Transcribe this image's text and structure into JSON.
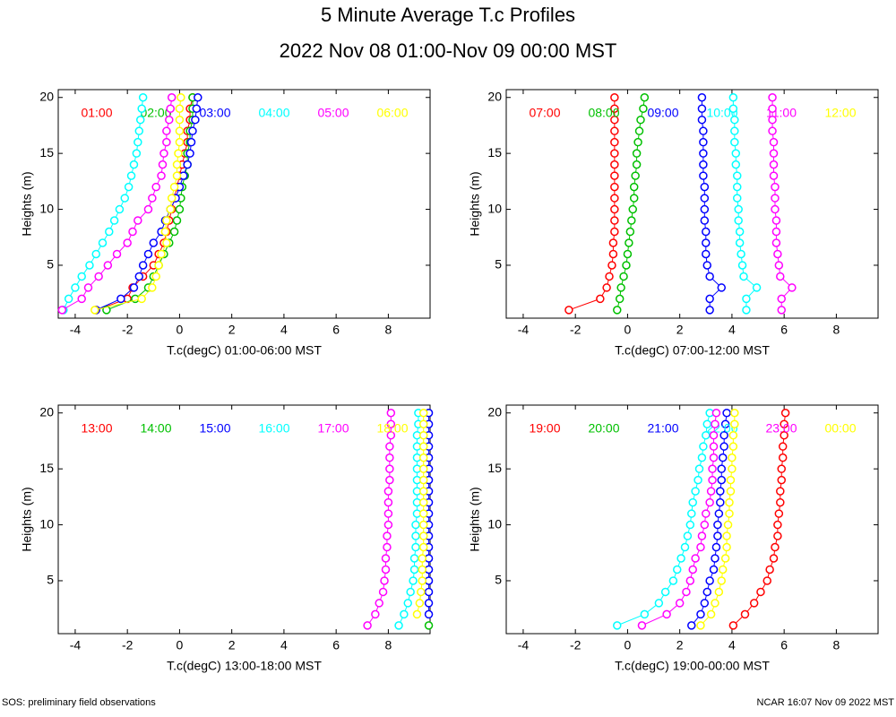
{
  "header": {
    "title": "5 Minute Average T.c Profiles",
    "subtitle": "2022 Nov 08 01:00-Nov 09 00:00 MST"
  },
  "footer": {
    "left": "SOS: preliminary field observations",
    "right": "NCAR 16:07 Nov 09 2022 MST"
  },
  "chart_data": [
    {
      "type": "line",
      "x_label": "T.c(degC) 01:00-06:00 MST",
      "y_label": "Heights (m)",
      "xlim": [
        -4.65,
        9.6
      ],
      "ylim": [
        0.27,
        20.7
      ],
      "xticks": [
        -4,
        -2,
        0,
        2,
        4,
        6,
        8
      ],
      "yticks": [
        5,
        10,
        15,
        20
      ],
      "y": [
        1,
        2,
        3,
        4,
        5,
        6,
        7,
        8,
        9,
        10,
        11,
        12,
        13,
        14,
        15,
        16,
        17,
        18,
        19,
        20
      ],
      "series": [
        {
          "name": "01:00",
          "color": "#ff0000",
          "x": [
            -3.2,
            -2.0,
            -1.8,
            -1.4,
            -1.0,
            -0.8,
            -0.6,
            -0.5,
            -0.4,
            -0.3,
            -0.2,
            -0.1,
            0.0,
            0.1,
            0.2,
            0.3,
            0.3,
            0.4,
            0.4,
            0.5
          ]
        },
        {
          "name": "02:00",
          "color": "#00c000",
          "x": [
            -2.8,
            -1.7,
            -1.2,
            -1.0,
            -0.8,
            -0.6,
            -0.4,
            -0.2,
            -0.1,
            0.0,
            0.05,
            0.1,
            0.2,
            0.3,
            0.3,
            0.4,
            0.4,
            0.5,
            0.5,
            0.5
          ]
        },
        {
          "name": "03:00",
          "color": "#0000ff",
          "x": [
            -3.2,
            -2.25,
            -1.75,
            -1.55,
            -1.4,
            -1.2,
            -1.0,
            -0.7,
            -0.55,
            -0.35,
            -0.15,
            0.0,
            0.15,
            0.3,
            0.4,
            0.45,
            0.5,
            0.6,
            0.65,
            0.7
          ]
        },
        {
          "name": "04:00",
          "color": "#00ffff",
          "x": [
            -4.45,
            -4.25,
            -4.0,
            -3.75,
            -3.45,
            -3.2,
            -2.95,
            -2.7,
            -2.5,
            -2.3,
            -2.1,
            -1.95,
            -1.85,
            -1.75,
            -1.65,
            -1.6,
            -1.55,
            -1.5,
            -1.45,
            -1.4
          ]
        },
        {
          "name": "05:00",
          "color": "#ff00ff",
          "x": [
            -4.5,
            -3.75,
            -3.5,
            -3.1,
            -2.75,
            -2.4,
            -2.0,
            -1.8,
            -1.6,
            -1.2,
            -1.05,
            -0.9,
            -0.7,
            -0.65,
            -0.6,
            -0.5,
            -0.5,
            -0.4,
            -0.35,
            -0.3
          ]
        },
        {
          "name": "06:00",
          "color": "#ffff00",
          "x": [
            -3.25,
            -1.45,
            -1.05,
            -0.9,
            -0.8,
            -0.7,
            -0.5,
            -0.55,
            -0.5,
            -0.35,
            -0.3,
            -0.2,
            -0.1,
            -0.1,
            -0.05,
            0.0,
            0.0,
            0.0,
            0.0,
            0.05
          ]
        }
      ]
    },
    {
      "type": "line",
      "x_label": "T.c(degC) 07:00-12:00 MST",
      "y_label": "Heights (m)",
      "xlim": [
        -4.65,
        9.6
      ],
      "ylim": [
        0.27,
        20.7
      ],
      "xticks": [
        -4,
        -2,
        0,
        2,
        4,
        6,
        8
      ],
      "yticks": [
        5,
        10,
        15,
        20
      ],
      "y": [
        1,
        2,
        3,
        4,
        5,
        6,
        7,
        8,
        9,
        10,
        11,
        12,
        13,
        14,
        15,
        16,
        17,
        18,
        19,
        20
      ],
      "series": [
        {
          "name": "07:00",
          "color": "#ff0000",
          "x": [
            -2.25,
            -1.05,
            -0.8,
            -0.7,
            -0.6,
            -0.55,
            -0.55,
            -0.5,
            -0.5,
            -0.5,
            -0.5,
            -0.5,
            -0.5,
            -0.5,
            -0.5,
            -0.5,
            -0.5,
            -0.5,
            -0.5,
            -0.5
          ]
        },
        {
          "name": "08:00",
          "color": "#00c000",
          "x": [
            -0.4,
            -0.3,
            -0.25,
            -0.15,
            -0.05,
            0.0,
            0.05,
            0.1,
            0.15,
            0.2,
            0.25,
            0.25,
            0.3,
            0.35,
            0.35,
            0.4,
            0.45,
            0.5,
            0.6,
            0.65
          ]
        },
        {
          "name": "09:00",
          "color": "#0000ff",
          "x": [
            3.15,
            3.15,
            3.6,
            3.15,
            3.05,
            3.0,
            3.0,
            3.0,
            2.95,
            2.95,
            2.95,
            2.95,
            2.9,
            2.9,
            2.9,
            2.9,
            2.9,
            2.85,
            2.85,
            2.85
          ]
        },
        {
          "name": "10:00",
          "color": "#00ffff",
          "x": [
            4.55,
            4.55,
            4.95,
            4.45,
            4.4,
            4.35,
            4.3,
            4.3,
            4.25,
            4.25,
            4.2,
            4.2,
            4.2,
            4.15,
            4.15,
            4.1,
            4.1,
            4.1,
            4.05,
            4.05
          ]
        },
        {
          "name": "11:00",
          "color": "#ff00ff",
          "x": [
            5.9,
            5.9,
            6.3,
            5.85,
            5.8,
            5.75,
            5.7,
            5.7,
            5.7,
            5.65,
            5.65,
            5.65,
            5.6,
            5.6,
            5.6,
            5.6,
            5.55,
            5.55,
            5.55,
            5.55
          ]
        },
        {
          "name": "12:00",
          "color": "#ffff00",
          "x": [
            null,
            null,
            null,
            null,
            null,
            null,
            null,
            null,
            null,
            null,
            null,
            null,
            null,
            null,
            null,
            null,
            null,
            null,
            null,
            null
          ]
        }
      ]
    },
    {
      "type": "line",
      "x_label": "T.c(degC) 13:00-18:00 MST",
      "y_label": "Heights (m)",
      "xlim": [
        -4.65,
        9.6
      ],
      "ylim": [
        0.27,
        20.7
      ],
      "xticks": [
        -4,
        -2,
        0,
        2,
        4,
        6,
        8
      ],
      "yticks": [
        5,
        10,
        15,
        20
      ],
      "y": [
        1,
        2,
        3,
        4,
        5,
        6,
        7,
        8,
        9,
        10,
        11,
        12,
        13,
        14,
        15,
        16,
        17,
        18,
        19,
        20
      ],
      "series": [
        {
          "name": "13:00",
          "color": "#ff0000",
          "x": [
            null,
            null,
            null,
            null,
            null,
            null,
            null,
            null,
            null,
            null,
            null,
            null,
            null,
            null,
            null,
            null,
            null,
            null,
            null,
            null
          ]
        },
        {
          "name": "14:00",
          "color": "#00c000",
          "x": [
            9.55,
            null,
            null,
            null,
            null,
            null,
            null,
            null,
            null,
            null,
            null,
            null,
            null,
            null,
            null,
            null,
            null,
            null,
            null,
            null
          ]
        },
        {
          "name": "15:00",
          "color": "#0000ff",
          "x": [
            null,
            9.55,
            9.55,
            9.55,
            9.55,
            9.55,
            9.55,
            9.55,
            9.55,
            9.55,
            9.55,
            9.55,
            9.55,
            9.55,
            9.55,
            9.55,
            9.55,
            9.55,
            9.55,
            9.55
          ]
        },
        {
          "name": "16:00",
          "color": "#00ffff",
          "x": [
            8.4,
            8.6,
            8.75,
            8.85,
            8.95,
            9.0,
            9.0,
            9.05,
            9.05,
            9.05,
            9.1,
            9.1,
            9.1,
            9.1,
            9.1,
            9.1,
            9.1,
            9.1,
            9.15,
            9.15
          ]
        },
        {
          "name": "17:00",
          "color": "#ff00ff",
          "x": [
            7.2,
            7.5,
            7.65,
            7.8,
            7.85,
            7.9,
            7.9,
            7.95,
            7.95,
            8.0,
            8.0,
            8.0,
            8.0,
            8.05,
            8.05,
            8.05,
            8.05,
            8.1,
            8.1,
            8.1
          ]
        },
        {
          "name": "18:00",
          "color": "#ffff00",
          "x": [
            null,
            9.1,
            9.2,
            9.25,
            9.3,
            9.3,
            9.3,
            9.35,
            9.35,
            9.35,
            9.35,
            9.35,
            9.35,
            9.35,
            9.35,
            9.35,
            9.35,
            9.35,
            9.35,
            9.35
          ]
        }
      ]
    },
    {
      "type": "line",
      "x_label": "T.c(degC) 19:00-00:00 MST",
      "y_label": "Heights (m)",
      "xlim": [
        -4.65,
        9.6
      ],
      "ylim": [
        0.27,
        20.7
      ],
      "xticks": [
        -4,
        -2,
        0,
        2,
        4,
        6,
        8
      ],
      "yticks": [
        5,
        10,
        15,
        20
      ],
      "y": [
        1,
        2,
        3,
        4,
        5,
        6,
        7,
        8,
        9,
        10,
        11,
        12,
        13,
        14,
        15,
        16,
        17,
        18,
        19,
        20
      ],
      "series": [
        {
          "name": "19:00",
          "color": "#ff0000",
          "x": [
            4.05,
            4.5,
            4.85,
            5.1,
            5.35,
            5.45,
            5.6,
            5.65,
            5.75,
            5.75,
            5.8,
            5.85,
            5.85,
            5.9,
            5.9,
            5.95,
            5.95,
            6.0,
            6.0,
            6.05
          ]
        },
        {
          "name": "20:00",
          "color": "#00c000",
          "x": [
            null,
            null,
            null,
            null,
            null,
            null,
            null,
            null,
            null,
            null,
            null,
            null,
            null,
            null,
            null,
            null,
            null,
            null,
            null,
            null
          ]
        },
        {
          "name": "21:00",
          "color": "#0000ff",
          "x": [
            2.45,
            2.8,
            2.95,
            3.05,
            3.15,
            3.3,
            3.35,
            3.4,
            3.45,
            3.45,
            3.5,
            3.55,
            3.55,
            3.6,
            3.6,
            3.65,
            3.7,
            3.7,
            3.75,
            3.8
          ]
        },
        {
          "name": "22:00",
          "color": "#00ffff",
          "x": [
            -0.4,
            0.65,
            1.2,
            1.45,
            1.75,
            1.9,
            2.05,
            2.2,
            2.3,
            2.4,
            2.45,
            2.5,
            2.6,
            2.7,
            2.75,
            2.85,
            2.9,
            3.0,
            3.05,
            3.15
          ]
        },
        {
          "name": "23:00",
          "color": "#ff00ff",
          "x": [
            0.55,
            1.5,
            2.0,
            2.25,
            2.4,
            2.5,
            2.6,
            2.8,
            2.85,
            2.95,
            3.0,
            3.15,
            3.2,
            3.25,
            3.25,
            3.3,
            3.3,
            3.3,
            3.35,
            3.4
          ]
        },
        {
          "name": "00:00",
          "color": "#ffff00",
          "x": [
            2.8,
            3.2,
            3.35,
            3.5,
            3.6,
            3.65,
            3.75,
            3.8,
            3.8,
            3.85,
            3.9,
            3.9,
            3.95,
            3.95,
            4.0,
            4.0,
            4.05,
            4.05,
            4.1,
            4.1
          ]
        }
      ]
    }
  ]
}
